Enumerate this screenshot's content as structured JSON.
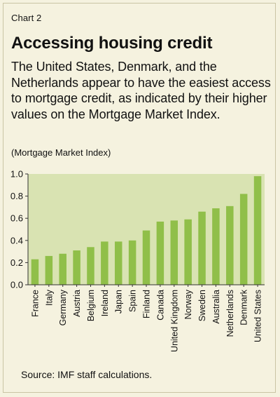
{
  "header": {
    "chart_label": "Chart 2",
    "title": "Accessing housing credit",
    "subtitle": "The United States, Denmark, and the Netherlands appear to have the easiest access to mortgage credit, as indicated by their higher values on the Mortgage Market Index.",
    "unit_label": "(Mortgage Market Index)"
  },
  "footer": {
    "source": "Source: IMF staff calculations."
  },
  "colors": {
    "bar": "#90bf49",
    "plot_bg": "#d9e3b2",
    "page_bg": "#f5f2df",
    "axis": "#333333"
  },
  "chart_data": {
    "type": "bar",
    "title": "",
    "xlabel": "",
    "ylabel": "(Mortgage Market Index)",
    "categories": [
      "France",
      "Italy",
      "Germany",
      "Austria",
      "Belgium",
      "Ireland",
      "Japan",
      "Spain",
      "Finland",
      "Canada",
      "United Kingdom",
      "Norway",
      "Sweden",
      "Australia",
      "Netherlands",
      "Denmark",
      "United States"
    ],
    "values": [
      0.23,
      0.26,
      0.28,
      0.31,
      0.34,
      0.39,
      0.39,
      0.4,
      0.49,
      0.57,
      0.58,
      0.59,
      0.66,
      0.69,
      0.71,
      0.82,
      0.98
    ],
    "ylim": [
      0,
      1.0
    ],
    "yticks": [
      "0.0",
      "0.2",
      "0.4",
      "0.6",
      "0.8",
      "1.0"
    ],
    "grid": false,
    "legend": "none"
  }
}
